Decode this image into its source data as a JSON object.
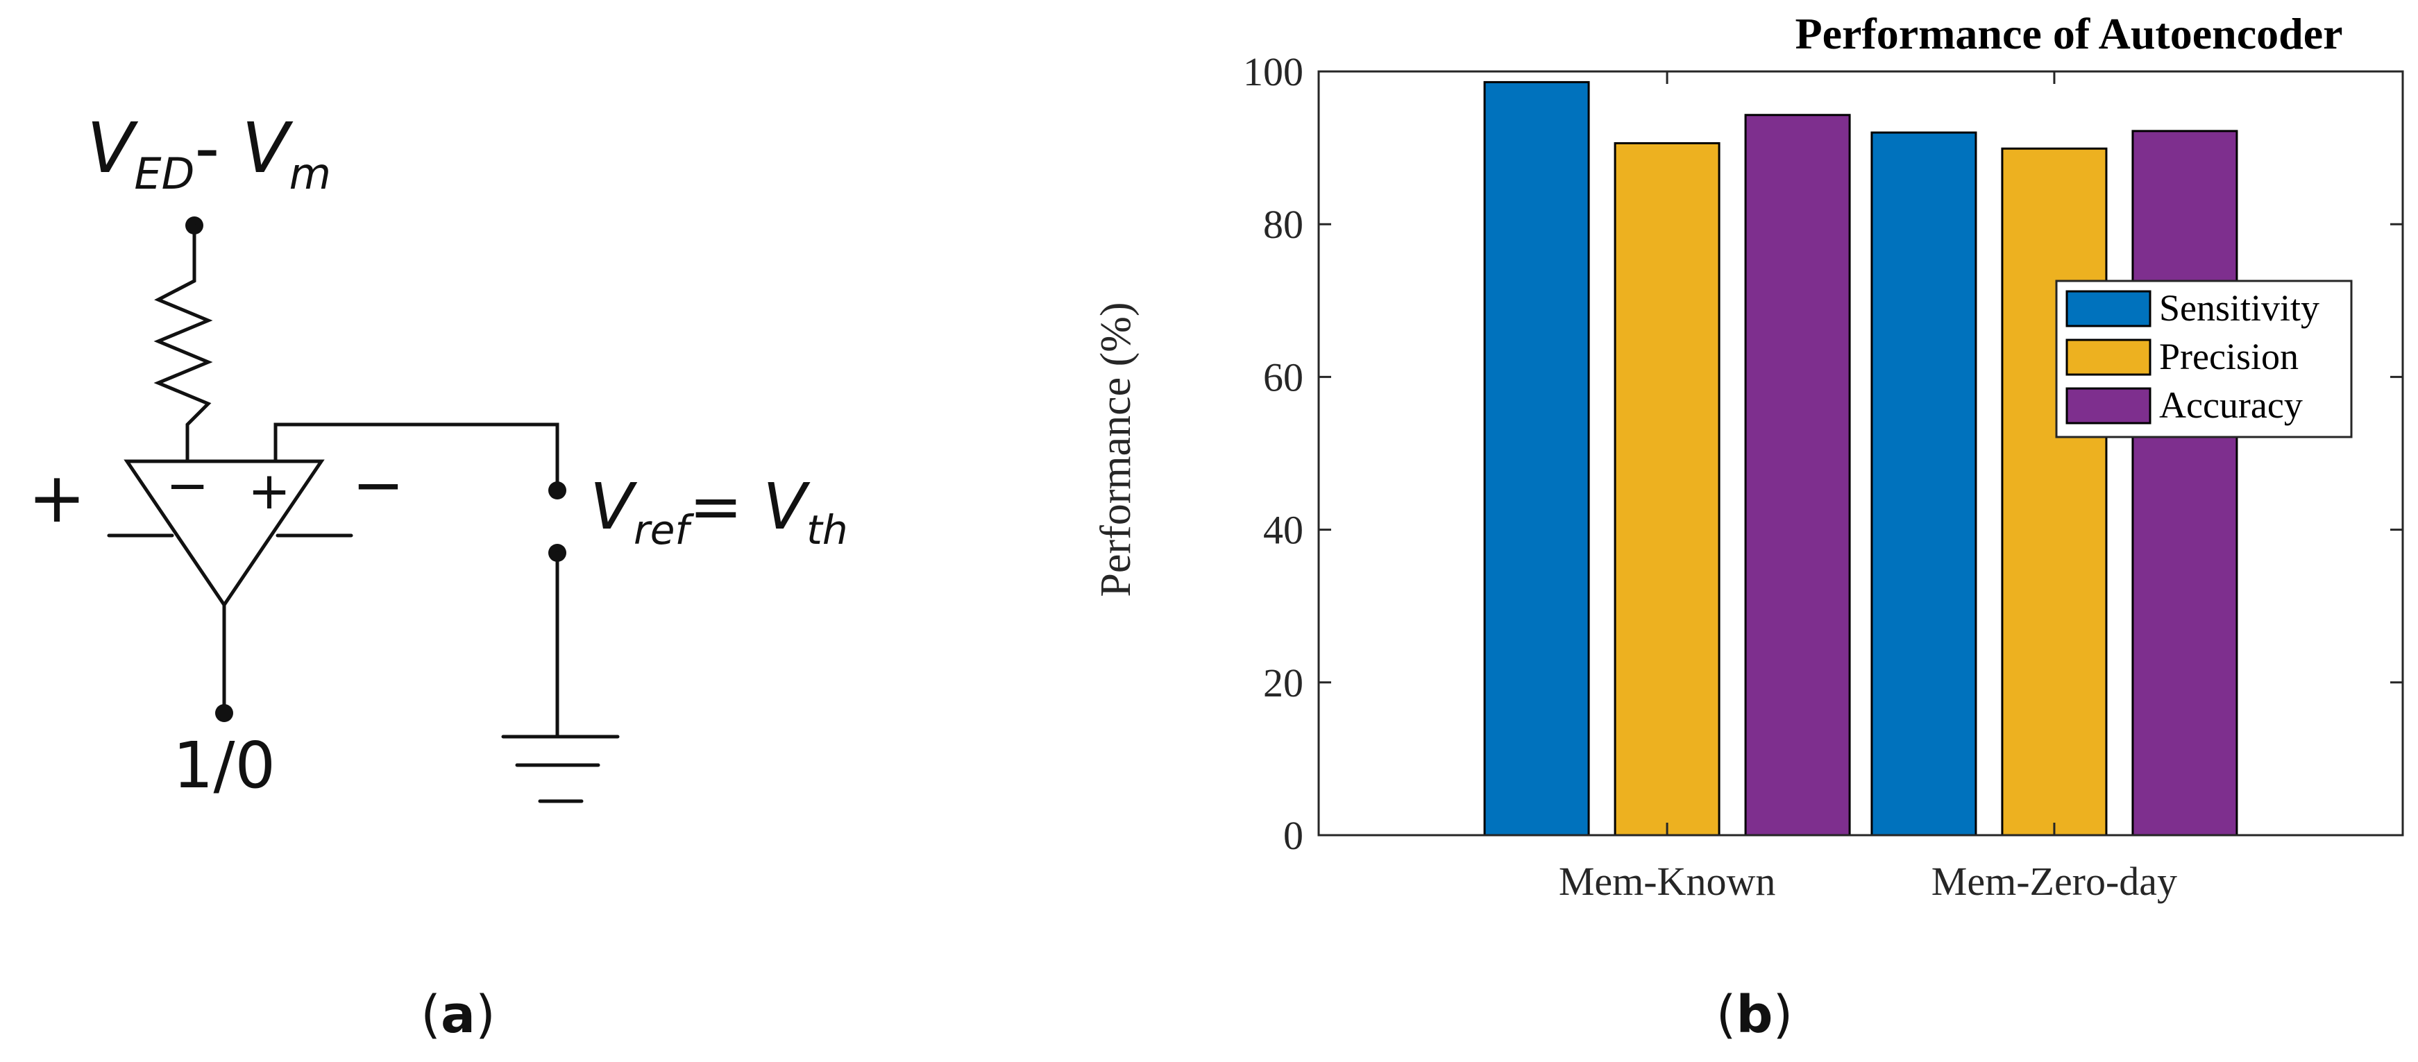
{
  "panel_a": {
    "caption_letter": "a",
    "caption_open": "(",
    "caption_close": ")",
    "supply_label": {
      "v1": "V",
      "v1_sub": "ED",
      "dash": "- ",
      "v2": "V",
      "v2_sub": "m"
    },
    "ref_label": {
      "v1": "V",
      "v1_sub": "ref",
      "eq": "= ",
      "v2": "V",
      "v2_sub": "th"
    },
    "output_label": "1/0",
    "left_plus": "+",
    "right_minus": "−",
    "inv_input": "−",
    "noninv_input": "+"
  },
  "panel_b": {
    "caption_letter": "b",
    "caption_open": "(",
    "caption_close": ")"
  },
  "chart_data": {
    "type": "bar",
    "title": "Performance of Autoencoder",
    "xlabel": "",
    "ylabel": "Performance (%)",
    "categories": [
      "Mem-Known",
      "Mem-Zero-day"
    ],
    "series": [
      {
        "name": "Sensitivity",
        "color": "#0072BD",
        "values": [
          98.6,
          92.0
        ]
      },
      {
        "name": "Precision",
        "color": "#EDB120",
        "values": [
          90.6,
          89.9
        ]
      },
      {
        "name": "Accuracy",
        "color": "#7E2F8E",
        "values": [
          94.3,
          92.2
        ]
      }
    ],
    "ylim": [
      0,
      100
    ],
    "yticks": [
      0,
      20,
      40,
      60,
      80,
      100
    ],
    "legend_position": "right-center",
    "grid": false
  }
}
